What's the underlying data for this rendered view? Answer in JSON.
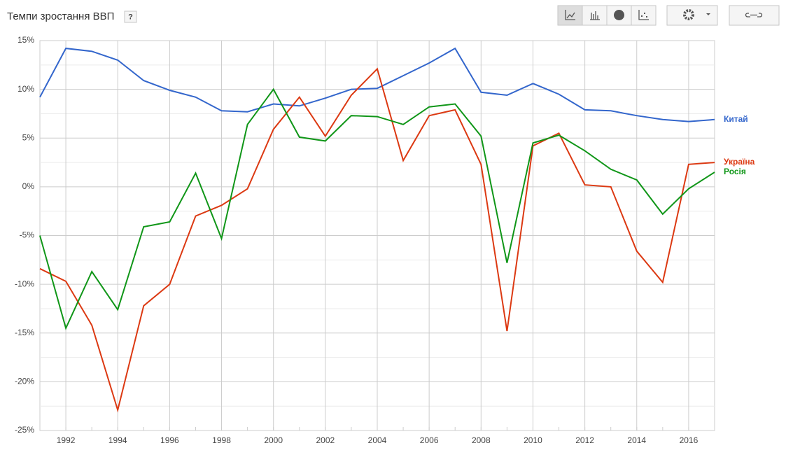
{
  "chart_data": {
    "type": "line",
    "title": "Темпи зростання ВВП",
    "help": "?",
    "x": [
      1991,
      1992,
      1993,
      1994,
      1995,
      1996,
      1997,
      1998,
      1999,
      2000,
      2001,
      2002,
      2003,
      2004,
      2005,
      2006,
      2007,
      2008,
      2009,
      2010,
      2011,
      2012,
      2013,
      2014,
      2015,
      2016,
      2017
    ],
    "xlim": [
      1991,
      2017
    ],
    "xticks": [
      1992,
      1994,
      1996,
      1998,
      2000,
      2002,
      2004,
      2006,
      2008,
      2010,
      2012,
      2014,
      2016
    ],
    "ylim": [
      -25,
      15
    ],
    "yticks": [
      {
        "value": -25,
        "label": "-25%"
      },
      {
        "value": -20,
        "label": "-20%"
      },
      {
        "value": -15,
        "label": "-15%"
      },
      {
        "value": -10,
        "label": "-10%"
      },
      {
        "value": -5,
        "label": "-5%"
      },
      {
        "value": 0,
        "label": "0%"
      },
      {
        "value": 5,
        "label": "5%"
      },
      {
        "value": 10,
        "label": "10%"
      },
      {
        "value": 15,
        "label": "15%"
      }
    ],
    "grid": true,
    "series": [
      {
        "name": "Китай",
        "color": "#3366cc",
        "values": [
          9.2,
          14.2,
          13.9,
          13.0,
          10.9,
          9.9,
          9.2,
          7.8,
          7.7,
          8.5,
          8.3,
          9.1,
          10.0,
          10.1,
          11.4,
          12.7,
          14.2,
          9.7,
          9.4,
          10.6,
          9.5,
          7.9,
          7.8,
          7.3,
          6.9,
          6.7,
          6.9
        ]
      },
      {
        "name": "Україна",
        "color": "#dc3912",
        "values": [
          -8.4,
          -9.7,
          -14.2,
          -22.9,
          -12.2,
          -10.0,
          -3.0,
          -1.9,
          -0.2,
          5.9,
          9.2,
          5.2,
          9.4,
          12.1,
          2.7,
          7.3,
          7.9,
          2.3,
          -14.8,
          4.2,
          5.5,
          0.2,
          0.0,
          -6.6,
          -9.8,
          2.3,
          2.5
        ]
      },
      {
        "name": "Росія",
        "color": "#109618",
        "values": [
          -5.0,
          -14.5,
          -8.7,
          -12.6,
          -4.1,
          -3.6,
          1.4,
          -5.3,
          6.4,
          10.0,
          5.1,
          4.7,
          7.3,
          7.2,
          6.4,
          8.2,
          8.5,
          5.2,
          -7.8,
          4.5,
          5.3,
          3.7,
          1.8,
          0.7,
          -2.8,
          -0.2,
          1.5
        ]
      }
    ]
  }
}
